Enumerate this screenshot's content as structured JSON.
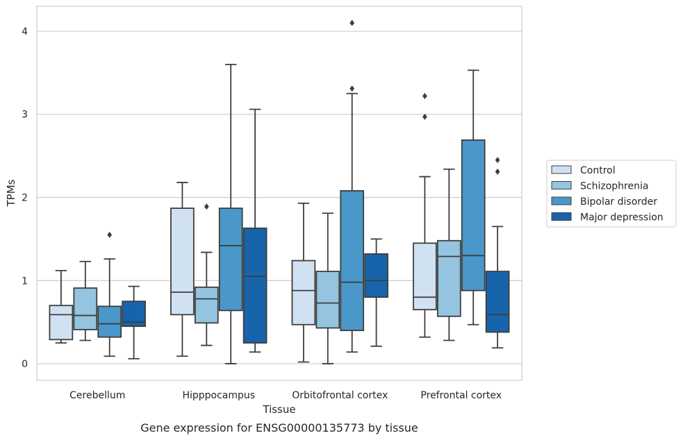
{
  "caption": "Gene expression for ENSG00000135773 by tissue",
  "chart_data": {
    "type": "box",
    "xlabel": "Tissue",
    "ylabel": "TPMs",
    "ylim": [
      -0.2,
      4.3
    ],
    "yticks": [
      0,
      1,
      2,
      3,
      4
    ],
    "grid": true,
    "legend_position": "right",
    "categories": [
      "Cerebellum",
      "Hipppocampus",
      "Orbitofrontal cortex",
      "Prefrontal cortex"
    ],
    "series": [
      {
        "name": "Control",
        "color": "#d0e1f2",
        "boxes": [
          {
            "whisker_low": 0.25,
            "q1": 0.29,
            "median": 0.59,
            "q3": 0.7,
            "whisker_high": 1.12,
            "outliers": []
          },
          {
            "whisker_low": 0.09,
            "q1": 0.59,
            "median": 0.86,
            "q3": 1.87,
            "whisker_high": 2.18,
            "outliers": []
          },
          {
            "whisker_low": 0.02,
            "q1": 0.47,
            "median": 0.88,
            "q3": 1.24,
            "whisker_high": 1.93,
            "outliers": []
          },
          {
            "whisker_low": 0.32,
            "q1": 0.65,
            "median": 0.8,
            "q3": 1.45,
            "whisker_high": 2.25,
            "outliers": [
              2.97,
              3.22
            ]
          }
        ]
      },
      {
        "name": "Schizophrenia",
        "color": "#94c4df",
        "boxes": [
          {
            "whisker_low": 0.28,
            "q1": 0.41,
            "median": 0.58,
            "q3": 0.91,
            "whisker_high": 1.23,
            "outliers": []
          },
          {
            "whisker_low": 0.22,
            "q1": 0.49,
            "median": 0.78,
            "q3": 0.92,
            "whisker_high": 1.34,
            "outliers": [
              1.89
            ]
          },
          {
            "whisker_low": 0.0,
            "q1": 0.43,
            "median": 0.73,
            "q3": 1.11,
            "whisker_high": 1.81,
            "outliers": []
          },
          {
            "whisker_low": 0.28,
            "q1": 0.57,
            "median": 1.29,
            "q3": 1.48,
            "whisker_high": 2.34,
            "outliers": []
          }
        ]
      },
      {
        "name": "Bipolar disorder",
        "color": "#4a98c9",
        "boxes": [
          {
            "whisker_low": 0.09,
            "q1": 0.32,
            "median": 0.48,
            "q3": 0.69,
            "whisker_high": 1.26,
            "outliers": [
              1.55
            ]
          },
          {
            "whisker_low": 0.0,
            "q1": 0.64,
            "median": 1.42,
            "q3": 1.87,
            "whisker_high": 3.6,
            "outliers": []
          },
          {
            "whisker_low": 0.14,
            "q1": 0.4,
            "median": 0.98,
            "q3": 2.08,
            "whisker_high": 3.25,
            "outliers": [
              3.31,
              4.1
            ]
          },
          {
            "whisker_low": 0.47,
            "q1": 0.88,
            "median": 1.3,
            "q3": 2.69,
            "whisker_high": 3.53,
            "outliers": []
          }
        ]
      },
      {
        "name": "Major depression",
        "color": "#1764ab",
        "boxes": [
          {
            "whisker_low": 0.06,
            "q1": 0.45,
            "median": 0.5,
            "q3": 0.75,
            "whisker_high": 0.93,
            "outliers": []
          },
          {
            "whisker_low": 0.14,
            "q1": 0.25,
            "median": 1.05,
            "q3": 1.63,
            "whisker_high": 3.06,
            "outliers": []
          },
          {
            "whisker_low": 0.21,
            "q1": 0.8,
            "median": 1.0,
            "q3": 1.32,
            "whisker_high": 1.5,
            "outliers": []
          },
          {
            "whisker_low": 0.19,
            "q1": 0.38,
            "median": 0.59,
            "q3": 1.11,
            "whisker_high": 1.65,
            "outliers": [
              2.31,
              2.45
            ]
          }
        ]
      }
    ]
  }
}
